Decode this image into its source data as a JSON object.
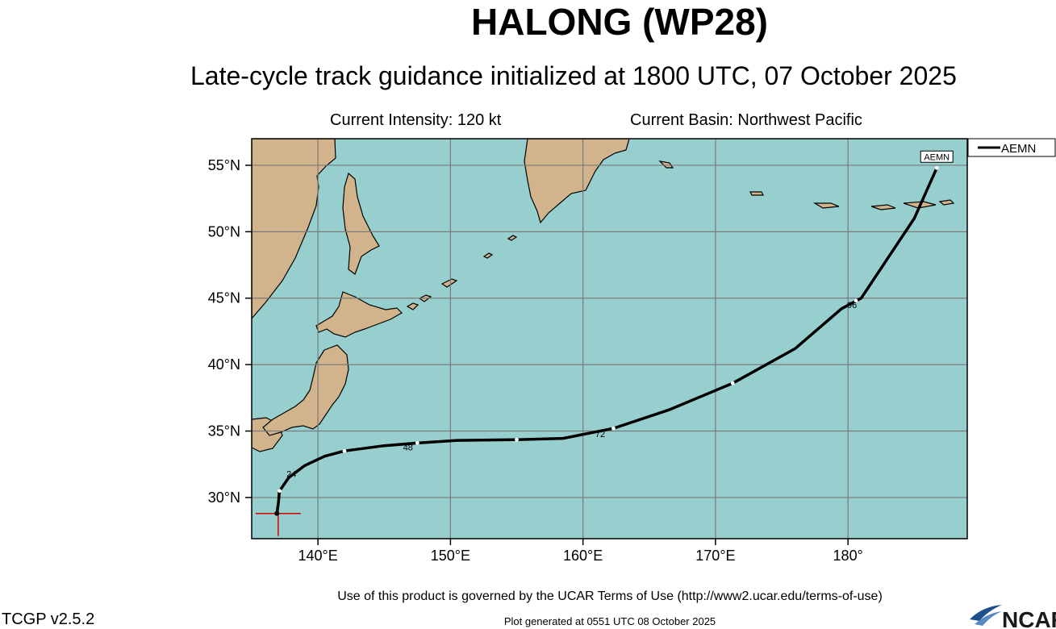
{
  "header": {
    "title": "HALONG (WP28)",
    "subtitle": "Late-cycle track guidance initialized at 1800 UTC, 07 October 2025",
    "intensity": "Current Intensity: 120 kt",
    "basin": "Current Basin: Northwest Pacific"
  },
  "map": {
    "lon_range": [
      135,
      189
    ],
    "lat_range": [
      26.9,
      57
    ],
    "lon_ticks": [
      140,
      150,
      160,
      170,
      180
    ],
    "lon_tick_labels": [
      "140°E",
      "150°E",
      "160°E",
      "170°E",
      "180°"
    ],
    "lat_ticks": [
      30,
      35,
      40,
      45,
      50,
      55
    ],
    "lat_tick_labels": [
      "30°N",
      "35°N",
      "40°N",
      "45°N",
      "50°N",
      "55°N"
    ],
    "grid": true,
    "colors": {
      "ocean": "#97cfcf",
      "land": "#d2b48c",
      "grid": "#7a7a7a",
      "track": "#000000",
      "current_marker": "#d40000"
    }
  },
  "chart_data": {
    "type": "line",
    "x_label": "",
    "y_label": "",
    "legend": {
      "placement": "top-right",
      "entries": [
        "AEMN"
      ]
    },
    "current_position": {
      "lon": 137.0,
      "lat": 28.8
    },
    "series": [
      {
        "name": "AEMN",
        "end_label": "AEMN",
        "points": [
          [
            136.9,
            28.8
          ],
          [
            137.0,
            29.5
          ],
          [
            137.1,
            30.5
          ],
          [
            137.8,
            31.5
          ],
          [
            139.0,
            32.4
          ],
          [
            140.5,
            33.1
          ],
          [
            142.0,
            33.5
          ],
          [
            145.0,
            33.9
          ],
          [
            147.5,
            34.1
          ],
          [
            150.5,
            34.3
          ],
          [
            155.0,
            34.35
          ],
          [
            158.5,
            34.45
          ],
          [
            162.3,
            35.2
          ],
          [
            166.5,
            36.6
          ],
          [
            171.3,
            38.6
          ],
          [
            176.0,
            41.2
          ],
          [
            179.5,
            44.2
          ],
          [
            181.0,
            45.0
          ],
          [
            183.0,
            48.0
          ],
          [
            185.0,
            51.0
          ],
          [
            186.7,
            54.8
          ]
        ],
        "tau_points": [
          [
            137.1,
            30.5
          ],
          [
            142.0,
            33.5
          ],
          [
            147.5,
            34.1
          ],
          [
            155.0,
            34.35
          ],
          [
            162.3,
            35.2
          ],
          [
            171.3,
            38.6
          ],
          [
            180.6,
            44.8
          ],
          [
            186.7,
            54.8
          ]
        ],
        "tau_labels": [
          {
            "text": "24",
            "lon": 138.0,
            "lat": 31.8
          },
          {
            "text": "48",
            "lon": 146.8,
            "lat": 33.8
          },
          {
            "text": "72",
            "lon": 161.3,
            "lat": 34.8
          },
          {
            "text": "96",
            "lon": 180.3,
            "lat": 44.5
          }
        ]
      }
    ]
  },
  "footer": {
    "terms": "Use of this product is governed by the UCAR Terms of Use (http://www2.ucar.edu/terms-of-use)",
    "version": "TCGP v2.5.2",
    "generated": "Plot generated at 0551 UTC   08 October 2025",
    "logo_text": "NCAR"
  }
}
